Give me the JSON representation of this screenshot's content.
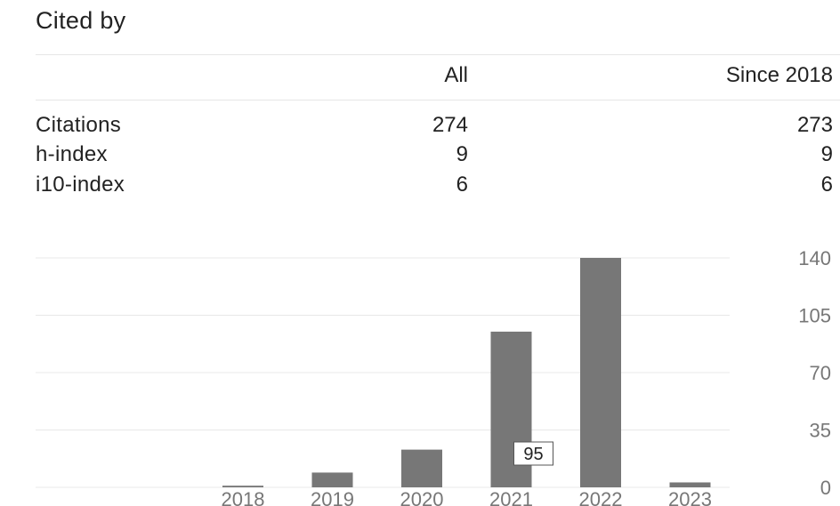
{
  "header": {
    "title": "Cited by"
  },
  "table": {
    "columns": [
      "All",
      "Since 2018"
    ],
    "rows": [
      {
        "label": "Citations",
        "all": "274",
        "since": "273"
      },
      {
        "label": "h-index",
        "all": "9",
        "since": "9"
      },
      {
        "label": "i10-index",
        "all": "6",
        "since": "6"
      }
    ]
  },
  "chart_data": {
    "type": "bar",
    "categories": [
      "2018",
      "2019",
      "2020",
      "2021",
      "2022",
      "2023"
    ],
    "values": [
      1,
      9,
      23,
      95,
      140,
      3
    ],
    "ylim": [
      0,
      140
    ],
    "yticks": [
      "0",
      "35",
      "70",
      "105",
      "140"
    ],
    "grid": true,
    "bar_color": "#777777",
    "tooltip": {
      "category": "2021",
      "text": "95"
    }
  }
}
